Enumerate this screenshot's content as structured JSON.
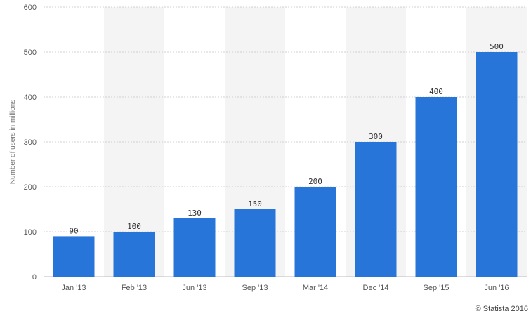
{
  "chart_data": {
    "type": "bar",
    "categories": [
      "Jan '13",
      "Feb '13",
      "Jun '13",
      "Sep '13",
      "Mar '14",
      "Dec '14",
      "Sep '15",
      "Jun '16"
    ],
    "values": [
      90,
      100,
      130,
      150,
      200,
      300,
      400,
      500
    ],
    "data_labels": [
      "90",
      "100",
      "130",
      "150",
      "200",
      "300",
      "400",
      "500"
    ],
    "ylabel": "Number of users in millions",
    "xlabel": "",
    "ylim": [
      0,
      600
    ],
    "yticks": [
      0,
      100,
      200,
      300,
      400,
      500,
      600
    ],
    "grid": true,
    "bar_color": "#2875d9",
    "band_color": "#f4f4f4"
  },
  "credit": "© Statista 2016"
}
